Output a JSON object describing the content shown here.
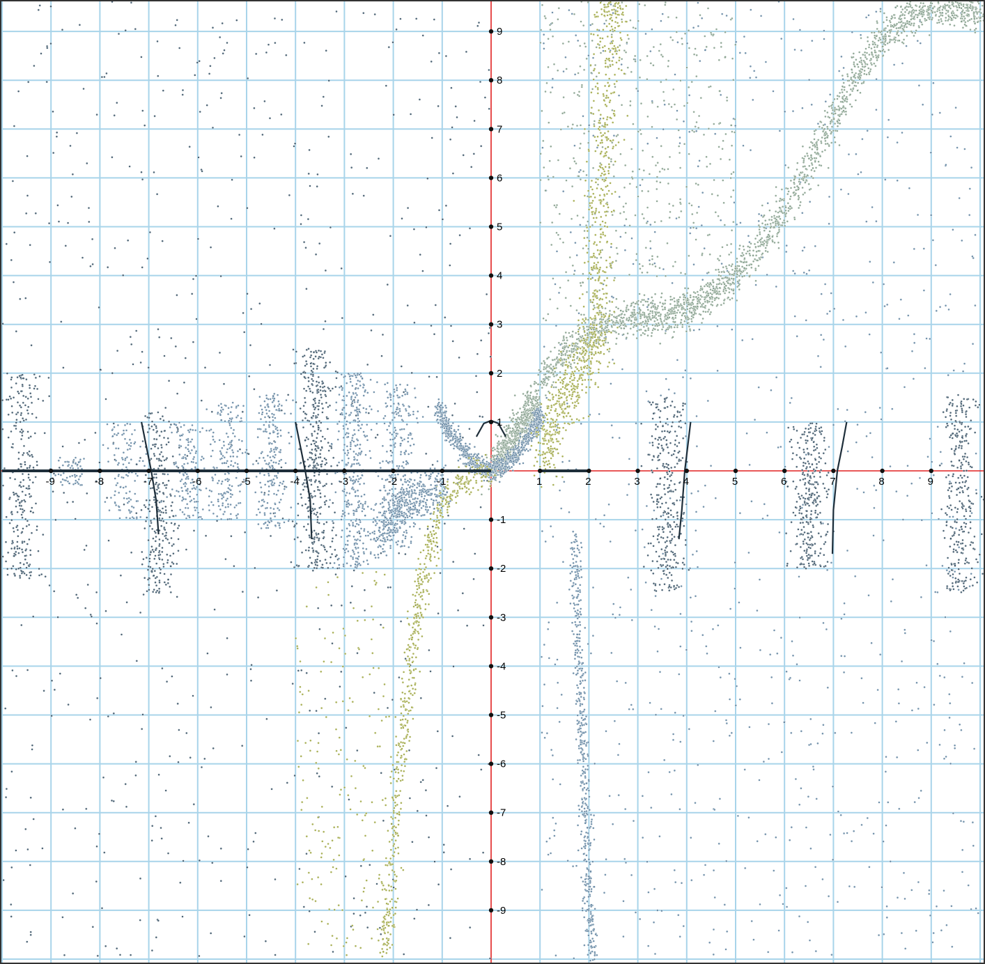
{
  "chart_data": {
    "type": "scatter",
    "title": "",
    "xlabel": "",
    "ylabel": "",
    "xlim": [
      -10,
      10
    ],
    "ylim": [
      -10,
      10
    ],
    "grid": true,
    "x_ticks": [
      -9,
      -8,
      -7,
      -6,
      -5,
      -4,
      -3,
      -2,
      -1,
      1,
      2,
      3,
      4,
      5,
      6,
      7,
      8,
      9
    ],
    "y_ticks": [
      -9,
      -8,
      -7,
      -6,
      -5,
      -4,
      -3,
      -2,
      -1,
      1,
      2,
      3,
      4,
      5,
      6,
      7,
      8,
      9
    ],
    "x_tick_labels": [
      "-9",
      "-8",
      "-7",
      "-6",
      "-5",
      "-4",
      "-3",
      "-2",
      "-1",
      "1",
      "2",
      "3",
      "4",
      "5",
      "6",
      "7",
      "8",
      "9"
    ],
    "y_tick_labels": [
      "-9",
      "-8",
      "-7",
      "-6",
      "-5",
      "-4",
      "-3",
      "-2",
      "-1",
      "1",
      "2",
      "3",
      "4",
      "5",
      "6",
      "7",
      "8",
      "9"
    ],
    "colors": {
      "grid": "#a8d4ea",
      "axis": "#e02020",
      "curve": "#1e2e3a",
      "point_blue": "#5a7f9c",
      "point_dark": "#2f4a5e",
      "point_olive": "#9aa23a",
      "point_sage": "#7f9a86"
    },
    "series": [
      {
        "role": "solid-curves",
        "color": "#1e2e3a",
        "curves": [
          {
            "kind": "baseline",
            "from": [
              -10,
              0
            ],
            "to": [
              0,
              0
            ]
          },
          {
            "kind": "baseline",
            "from": [
              1,
              0
            ],
            "to": [
              2,
              0
            ]
          },
          {
            "kind": "cap",
            "points": [
              [
                -0.3,
                0.7
              ],
              [
                -0.15,
                0.97
              ],
              [
                0,
                1.03
              ],
              [
                0.15,
                0.97
              ],
              [
                0.3,
                0.7
              ]
            ]
          },
          {
            "kind": "pole",
            "points": [
              [
                -7.15,
                1.0
              ],
              [
                -7.05,
                0.5
              ],
              [
                -6.95,
                0.0
              ],
              [
                -6.85,
                -0.6
              ],
              [
                -6.8,
                -1.3
              ]
            ]
          },
          {
            "kind": "pole",
            "points": [
              [
                -4.0,
                1.0
              ],
              [
                -3.9,
                0.5
              ],
              [
                -3.8,
                0.0
              ],
              [
                -3.7,
                -0.6
              ],
              [
                -3.67,
                -1.4
              ]
            ]
          },
          {
            "kind": "pole",
            "points": [
              [
                4.08,
                1.0
              ],
              [
                4.02,
                0.5
              ],
              [
                3.96,
                0.0
              ],
              [
                3.9,
                -0.8
              ],
              [
                3.84,
                -1.4
              ]
            ]
          },
          {
            "kind": "pole",
            "points": [
              [
                7.27,
                1.0
              ],
              [
                7.18,
                0.5
              ],
              [
                7.08,
                0.0
              ],
              [
                7.0,
                -0.8
              ],
              [
                6.98,
                -1.7
              ]
            ]
          }
        ]
      },
      {
        "role": "dense-bands",
        "bands": [
          {
            "color": "#7f9a86",
            "count": 2400,
            "spread": 0.18,
            "points": [
              [
                0,
                0
              ],
              [
                0.5,
                0.8
              ],
              [
                1,
                1.7
              ],
              [
                1.5,
                2.4
              ],
              [
                2,
                2.8
              ],
              [
                2.5,
                3.05
              ],
              [
                3,
                3.15
              ],
              [
                3.5,
                3.15
              ],
              [
                4,
                3.3
              ],
              [
                4.5,
                3.6
              ],
              [
                5,
                4.0
              ],
              [
                5.5,
                4.6
              ],
              [
                6,
                5.4
              ],
              [
                6.5,
                6.2
              ],
              [
                7,
                7.2
              ],
              [
                7.5,
                8.2
              ],
              [
                8,
                8.9
              ],
              [
                8.5,
                9.25
              ],
              [
                9,
                9.45
              ],
              [
                9.5,
                9.5
              ],
              [
                10,
                9.3
              ]
            ]
          },
          {
            "color": "#7f9a86",
            "count": 350,
            "spread": 0.12,
            "points": [
              [
                0,
                0
              ],
              [
                0.3,
                0.4
              ],
              [
                0.6,
                0.9
              ],
              [
                0.9,
                1.4
              ]
            ]
          },
          {
            "color": "#5a7f9c",
            "count": 450,
            "spread": 0.1,
            "points": [
              [
                -1.1,
                1.3
              ],
              [
                -0.9,
                0.9
              ],
              [
                -0.6,
                0.45
              ],
              [
                -0.3,
                0.12
              ],
              [
                0,
                0
              ]
            ]
          },
          {
            "color": "#5a7f9c",
            "count": 450,
            "spread": 0.1,
            "points": [
              [
                0,
                0
              ],
              [
                0.3,
                0.12
              ],
              [
                0.6,
                0.45
              ],
              [
                0.9,
                0.9
              ],
              [
                1.0,
                1.2
              ]
            ]
          },
          {
            "color": "#9aa23a",
            "count": 650,
            "spread": 0.16,
            "points": [
              [
                0,
                0
              ],
              [
                -0.4,
                -0.1
              ],
              [
                -0.7,
                -0.3
              ],
              [
                -1.0,
                -0.7
              ],
              [
                -1.2,
                -1.3
              ],
              [
                -1.35,
                -2.0
              ],
              [
                -1.5,
                -2.8
              ],
              [
                -1.6,
                -3.6
              ],
              [
                -1.7,
                -4.5
              ],
              [
                -1.8,
                -5.5
              ],
              [
                -1.9,
                -6.6
              ],
              [
                -2.0,
                -7.8
              ],
              [
                -2.1,
                -9.0
              ],
              [
                -2.2,
                -10.0
              ]
            ]
          },
          {
            "color": "#5a7f9c",
            "count": 450,
            "spread": 0.22,
            "points": [
              [
                -1.0,
                -0.3
              ],
              [
                -1.4,
                -0.5
              ],
              [
                -1.8,
                -0.7
              ],
              [
                -2.1,
                -1.0
              ],
              [
                -2.3,
                -1.4
              ]
            ]
          },
          {
            "color": "#9aa23a",
            "count": 500,
            "spread": 0.28,
            "points": [
              [
                1.05,
                0.05
              ],
              [
                1.2,
                0.7
              ],
              [
                1.45,
                1.4
              ],
              [
                1.7,
                1.9
              ],
              [
                1.95,
                2.4
              ],
              [
                2.3,
                2.8
              ]
            ]
          },
          {
            "color": "#5a7f9c",
            "count": 500,
            "spread": 0.12,
            "points": [
              [
                1.7,
                -1.4
              ],
              [
                1.75,
                -2.5
              ],
              [
                1.8,
                -3.8
              ],
              [
                1.85,
                -5.0
              ],
              [
                1.9,
                -6.2
              ],
              [
                1.95,
                -7.5
              ],
              [
                2.0,
                -8.8
              ],
              [
                2.05,
                -10.0
              ]
            ]
          },
          {
            "color": "#9aa23a",
            "count": 500,
            "spread": 0.3,
            "points": [
              [
                2.2,
                3.0
              ],
              [
                2.2,
                5.0
              ],
              [
                2.3,
                7.0
              ],
              [
                2.4,
                9.0
              ],
              [
                2.5,
                10.0
              ]
            ]
          }
        ]
      },
      {
        "role": "column-clusters",
        "clusters": [
          {
            "x": -9.6,
            "y_range": [
              -2.2,
              2.0
            ],
            "count": 260,
            "color": "#2f4a5e"
          },
          {
            "x": -8.6,
            "y_range": [
              -0.3,
              0.3
            ],
            "count": 60,
            "color": "#5a7f9c"
          },
          {
            "x": -7.5,
            "y_range": [
              -1.0,
              1.0
            ],
            "count": 120,
            "color": "#5a7f9c"
          },
          {
            "x": -6.8,
            "y_range": [
              -2.5,
              1.2
            ],
            "count": 260,
            "color": "#2f4a5e"
          },
          {
            "x": -6.2,
            "y_range": [
              -1.0,
              1.0
            ],
            "count": 160,
            "color": "#5a7f9c"
          },
          {
            "x": -5.4,
            "y_range": [
              -1.0,
              1.4
            ],
            "count": 180,
            "color": "#5a7f9c"
          },
          {
            "x": -4.5,
            "y_range": [
              -1.2,
              1.6
            ],
            "count": 220,
            "color": "#5a7f9c"
          },
          {
            "x": -3.6,
            "y_range": [
              -2.0,
              2.5
            ],
            "count": 420,
            "color": "#2f4a5e"
          },
          {
            "x": -2.8,
            "y_range": [
              -2.0,
              2.0
            ],
            "count": 380,
            "color": "#5a7f9c"
          },
          {
            "x": -1.9,
            "y_range": [
              -1.6,
              1.8
            ],
            "count": 300,
            "color": "#5a7f9c"
          },
          {
            "x": 3.6,
            "y_range": [
              -2.5,
              1.5
            ],
            "count": 320,
            "color": "#2f4a5e"
          },
          {
            "x": 6.5,
            "y_range": [
              -2.0,
              1.0
            ],
            "count": 300,
            "color": "#2f4a5e"
          },
          {
            "x": 9.6,
            "y_range": [
              -2.5,
              1.6
            ],
            "count": 300,
            "color": "#2f4a5e"
          }
        ]
      },
      {
        "role": "background-scatter",
        "regions": [
          {
            "x_range": [
              -10,
              0
            ],
            "y_range": [
              -10,
              10
            ],
            "count": 700,
            "color": "#2f4a5e"
          },
          {
            "x_range": [
              1,
              10
            ],
            "y_range": [
              -10,
              10
            ],
            "count": 900,
            "color": "#5a7f9c"
          },
          {
            "x_range": [
              -4,
              -2
            ],
            "y_range": [
              -10,
              -2
            ],
            "count": 180,
            "color": "#9aa23a"
          },
          {
            "x_range": [
              1,
              5
            ],
            "y_range": [
              3,
              10
            ],
            "count": 500,
            "color": "#7f9a86"
          }
        ]
      }
    ]
  }
}
